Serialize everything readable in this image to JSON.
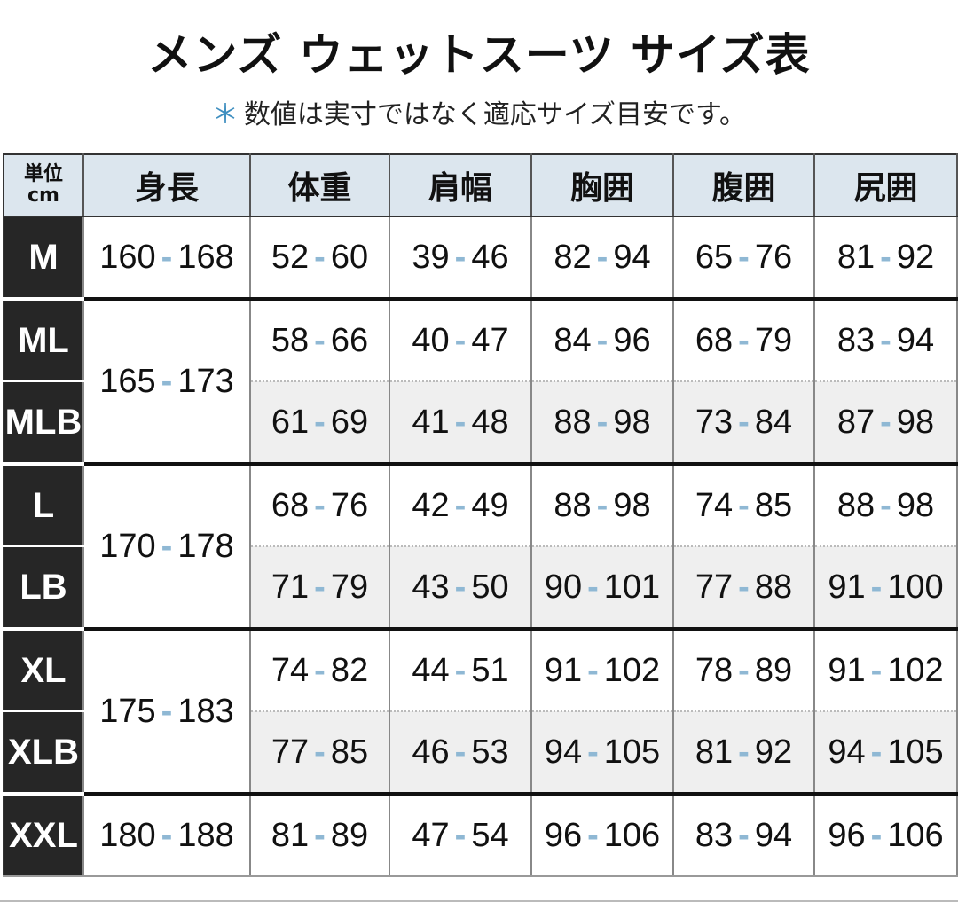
{
  "title": "メンズ ウェットスーツ サイズ表",
  "subtitle": {
    "mark": "＊",
    "text": "数値は実寸ではなく適応サイズ目安です。"
  },
  "colors": {
    "label_bg": "#262626",
    "header_bg": "#dce6ee",
    "dash": "#8fb8d4",
    "alt_row": "#efefef"
  },
  "table": {
    "unit_label": [
      "単位",
      "cm"
    ],
    "headers": [
      "身長",
      "体重",
      "肩幅",
      "胸囲",
      "腹囲",
      "尻囲"
    ],
    "groups": [
      {
        "height": [
          "160",
          "168"
        ],
        "rows": [
          {
            "size": "M",
            "values": [
              [
                "52",
                "60"
              ],
              [
                "39",
                "46"
              ],
              [
                "82",
                "94"
              ],
              [
                "65",
                "76"
              ],
              [
                "81",
                "92"
              ]
            ]
          }
        ]
      },
      {
        "height": [
          "165",
          "173"
        ],
        "rows": [
          {
            "size": "ML",
            "values": [
              [
                "58",
                "66"
              ],
              [
                "40",
                "47"
              ],
              [
                "84",
                "96"
              ],
              [
                "68",
                "79"
              ],
              [
                "83",
                "94"
              ]
            ]
          },
          {
            "size": "MLB",
            "values": [
              [
                "61",
                "69"
              ],
              [
                "41",
                "48"
              ],
              [
                "88",
                "98"
              ],
              [
                "73",
                "84"
              ],
              [
                "87",
                "98"
              ]
            ]
          }
        ]
      },
      {
        "height": [
          "170",
          "178"
        ],
        "rows": [
          {
            "size": "L",
            "values": [
              [
                "68",
                "76"
              ],
              [
                "42",
                "49"
              ],
              [
                "88",
                "98"
              ],
              [
                "74",
                "85"
              ],
              [
                "88",
                "98"
              ]
            ]
          },
          {
            "size": "LB",
            "values": [
              [
                "71",
                "79"
              ],
              [
                "43",
                "50"
              ],
              [
                "90",
                "101"
              ],
              [
                "77",
                "88"
              ],
              [
                "91",
                "100"
              ]
            ]
          }
        ]
      },
      {
        "height": [
          "175",
          "183"
        ],
        "rows": [
          {
            "size": "XL",
            "values": [
              [
                "74",
                "82"
              ],
              [
                "44",
                "51"
              ],
              [
                "91",
                "102"
              ],
              [
                "78",
                "89"
              ],
              [
                "91",
                "102"
              ]
            ]
          },
          {
            "size": "XLB",
            "values": [
              [
                "77",
                "85"
              ],
              [
                "46",
                "53"
              ],
              [
                "94",
                "105"
              ],
              [
                "81",
                "92"
              ],
              [
                "94",
                "105"
              ]
            ]
          }
        ]
      },
      {
        "height": [
          "180",
          "188"
        ],
        "rows": [
          {
            "size": "XXL",
            "values": [
              [
                "81",
                "89"
              ],
              [
                "47",
                "54"
              ],
              [
                "96",
                "106"
              ],
              [
                "83",
                "94"
              ],
              [
                "96",
                "106"
              ]
            ]
          }
        ]
      }
    ]
  }
}
